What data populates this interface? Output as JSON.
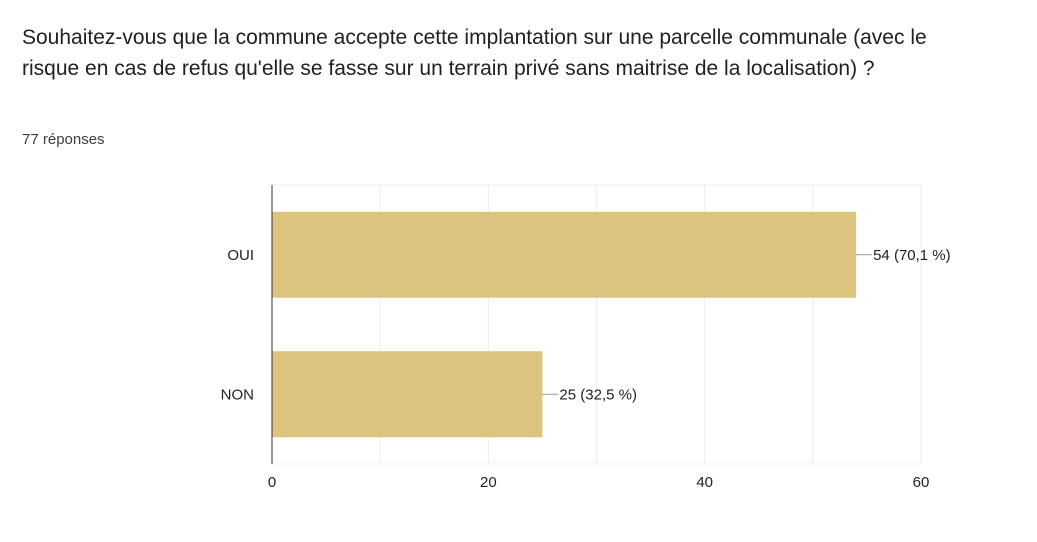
{
  "question": {
    "title": "Souhaitez-vous que la commune accepte cette implantation sur une parcelle communale (avec le risque en cas de refus qu'elle se fasse sur un terrain privé sans maitrise de la localisation) ?",
    "response_count": "77 réponses"
  },
  "colors": {
    "bar": "#dcc37f",
    "grid": "#ececec",
    "axis": "#333333",
    "text": "#222222"
  },
  "chart_data": {
    "type": "bar",
    "orientation": "horizontal",
    "categories": [
      "OUI",
      "NON"
    ],
    "values": [
      54,
      25
    ],
    "data_labels": [
      "54 (70,1 %)",
      "25 (32,5 %)"
    ],
    "xlim": [
      0,
      60
    ],
    "xticks": [
      0,
      20,
      40,
      60
    ],
    "xtick_labels": [
      "0",
      "20",
      "40",
      "60"
    ],
    "grid": true
  }
}
